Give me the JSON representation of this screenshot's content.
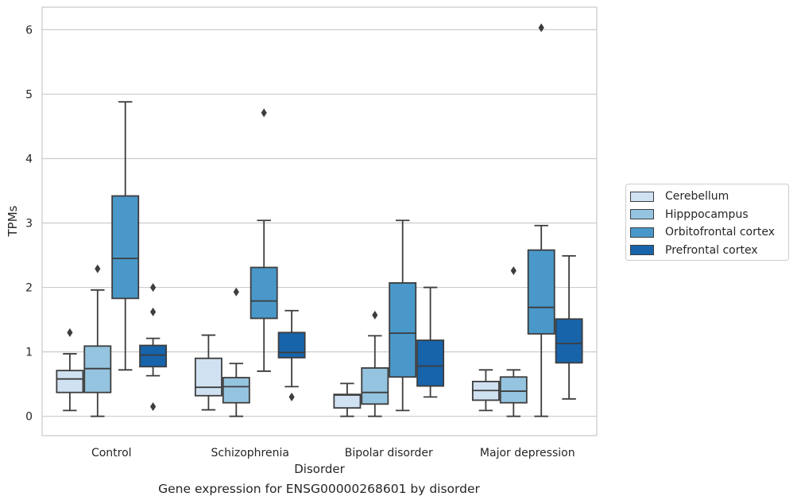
{
  "chart_data": {
    "type": "box",
    "title": "",
    "caption": "Gene expression for ENSG00000268601 by disorder",
    "xlabel": "Disorder",
    "ylabel": "TPMs",
    "ylim": [
      -0.3,
      6.35
    ],
    "yticks": [
      0,
      1,
      2,
      3,
      4,
      5,
      6
    ],
    "grid": "horizontal",
    "legend_position": "right",
    "categories": [
      "Control",
      "Schizophrenia",
      "Bipolar disorder",
      "Major depression"
    ],
    "series": [
      {
        "name": "Cerebellum",
        "color": "#d0e1f2",
        "boxes": [
          {
            "whislo": 0.09,
            "q1": 0.37,
            "med": 0.58,
            "q3": 0.71,
            "whishi": 0.97,
            "fliers": [
              1.3
            ]
          },
          {
            "whislo": 0.1,
            "q1": 0.32,
            "med": 0.45,
            "q3": 0.9,
            "whishi": 1.26,
            "fliers": []
          },
          {
            "whislo": 0.0,
            "q1": 0.13,
            "med": 0.33,
            "q3": 0.34,
            "whishi": 0.51,
            "fliers": []
          },
          {
            "whislo": 0.09,
            "q1": 0.25,
            "med": 0.4,
            "q3": 0.54,
            "whishi": 0.72,
            "fliers": []
          }
        ]
      },
      {
        "name": "Hipppocampus",
        "color": "#94c4df",
        "boxes": [
          {
            "whislo": 0.0,
            "q1": 0.37,
            "med": 0.74,
            "q3": 1.09,
            "whishi": 1.96,
            "fliers": [
              2.29
            ]
          },
          {
            "whislo": 0.0,
            "q1": 0.21,
            "med": 0.46,
            "q3": 0.6,
            "whishi": 0.82,
            "fliers": [
              1.93
            ]
          },
          {
            "whislo": 0.0,
            "q1": 0.19,
            "med": 0.37,
            "q3": 0.75,
            "whishi": 1.25,
            "fliers": [
              1.57
            ]
          },
          {
            "whislo": 0.0,
            "q1": 0.21,
            "med": 0.39,
            "q3": 0.61,
            "whishi": 0.72,
            "fliers": [
              2.26
            ]
          }
        ]
      },
      {
        "name": "Orbitofrontal cortex",
        "color": "#4a98c9",
        "boxes": [
          {
            "whislo": 0.72,
            "q1": 1.83,
            "med": 2.45,
            "q3": 3.42,
            "whishi": 4.88,
            "fliers": []
          },
          {
            "whislo": 0.7,
            "q1": 1.52,
            "med": 1.79,
            "q3": 2.31,
            "whishi": 3.04,
            "fliers": [
              4.71
            ]
          },
          {
            "whislo": 0.09,
            "q1": 0.61,
            "med": 1.29,
            "q3": 2.07,
            "whishi": 3.04,
            "fliers": []
          },
          {
            "whislo": 0.0,
            "q1": 1.28,
            "med": 1.69,
            "q3": 2.58,
            "whishi": 2.96,
            "fliers": [
              6.03
            ]
          }
        ]
      },
      {
        "name": "Prefrontal cortex",
        "color": "#1764ab",
        "boxes": [
          {
            "whislo": 0.63,
            "q1": 0.77,
            "med": 0.95,
            "q3": 1.1,
            "whishi": 1.21,
            "fliers": [
              2.0,
              1.62,
              0.15
            ]
          },
          {
            "whislo": 0.46,
            "q1": 0.91,
            "med": 0.99,
            "q3": 1.3,
            "whishi": 1.64,
            "fliers": [
              0.3
            ]
          },
          {
            "whislo": 0.3,
            "q1": 0.47,
            "med": 0.78,
            "q3": 1.18,
            "whishi": 2.0,
            "fliers": []
          },
          {
            "whislo": 0.27,
            "q1": 0.83,
            "med": 1.13,
            "q3": 1.51,
            "whishi": 2.49,
            "fliers": []
          }
        ]
      }
    ]
  }
}
